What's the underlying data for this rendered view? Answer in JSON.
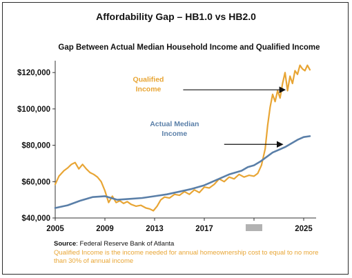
{
  "title": "Affordability Gap – HB1.0 vs HB2.0",
  "subtitle": "Gap Between Actual Median Household Income and Qualified Income",
  "source": {
    "label": "Source",
    "text": ": Federal Reserve Bank of Atlanta"
  },
  "note": "Qualified Income is the income needed for annual homeownership cost to equal to no more than 30% of annual income",
  "colors": {
    "qualified": "#e8a534",
    "actual": "#5a7fa8",
    "axis": "#333333"
  },
  "chart_data": {
    "type": "line",
    "title": "Gap Between Actual Median Household Income and Qualified Income",
    "xlabel": "",
    "ylabel": "",
    "xlim": [
      2005,
      2026
    ],
    "ylim": [
      40000,
      125000
    ],
    "x_ticks": [
      2005,
      2009,
      2013,
      2017,
      2021,
      2025
    ],
    "x_tick_labels": [
      "2005",
      "2009",
      "2013",
      "2017",
      "",
      "2025"
    ],
    "y_ticks": [
      40000,
      60000,
      80000,
      100000,
      120000
    ],
    "y_tick_labels": [
      "$40,000",
      "$60,000",
      "$80,000",
      "$100,000",
      "$120,000"
    ],
    "grid": false,
    "legend": "inline annotations",
    "series": [
      {
        "name": "Qualified Income",
        "x": [
          2005.0,
          2005.3,
          2005.7,
          2006.0,
          2006.3,
          2006.6,
          2006.9,
          2007.2,
          2007.5,
          2007.8,
          2008.1,
          2008.4,
          2008.7,
          2009.0,
          2009.3,
          2009.6,
          2009.9,
          2010.2,
          2010.5,
          2010.8,
          2011.1,
          2011.5,
          2011.9,
          2012.3,
          2012.6,
          2012.9,
          2013.2,
          2013.5,
          2013.8,
          2014.2,
          2014.6,
          2015.0,
          2015.4,
          2015.8,
          2016.2,
          2016.6,
          2017.0,
          2017.4,
          2017.8,
          2018.2,
          2018.6,
          2019.0,
          2019.4,
          2019.8,
          2020.2,
          2020.6,
          2021.0,
          2021.3,
          2021.6,
          2021.9,
          2022.1,
          2022.3,
          2022.5,
          2022.7,
          2022.9,
          2023.1,
          2023.3,
          2023.5,
          2023.7,
          2023.9,
          2024.1,
          2024.3,
          2024.5,
          2024.7,
          2024.9,
          2025.1,
          2025.3,
          2025.5
        ],
        "y": [
          58500,
          63000,
          66000,
          67500,
          69500,
          70500,
          67000,
          69500,
          67000,
          65000,
          64000,
          62500,
          60000,
          55000,
          48500,
          52000,
          48500,
          49500,
          48000,
          49000,
          47500,
          46500,
          47000,
          45500,
          45000,
          44000,
          46500,
          50000,
          51500,
          51000,
          53000,
          52500,
          54500,
          53000,
          55500,
          54000,
          57000,
          56500,
          58500,
          61500,
          60000,
          62500,
          61500,
          64000,
          62500,
          63500,
          63000,
          64500,
          69000,
          78000,
          91000,
          101000,
          108000,
          104000,
          110000,
          106000,
          114000,
          120000,
          110000,
          118000,
          114000,
          121000,
          119000,
          124000,
          122000,
          121000,
          124000,
          121500
        ]
      },
      {
        "name": "Actual Median Income",
        "x": [
          2005.0,
          2006.0,
          2007.0,
          2008.0,
          2009.0,
          2010.0,
          2011.0,
          2012.0,
          2013.0,
          2014.0,
          2015.0,
          2016.0,
          2017.0,
          2018.0,
          2019.0,
          2020.0,
          2020.5,
          2021.0,
          2021.5,
          2022.0,
          2022.5,
          2023.0,
          2023.5,
          2024.0,
          2024.5,
          2025.0,
          2025.5
        ],
        "y": [
          45500,
          47000,
          49500,
          51500,
          52000,
          50000,
          50500,
          51000,
          52000,
          53000,
          54500,
          56000,
          58000,
          61000,
          64000,
          66000,
          68000,
          69000,
          71000,
          73500,
          76000,
          77500,
          79000,
          81000,
          83000,
          84500,
          85000
        ]
      }
    ],
    "annotations": [
      {
        "text": [
          "Qualified",
          "Income"
        ],
        "series": "Qualified Income"
      },
      {
        "text": [
          "Actual Median",
          "Income"
        ],
        "series": "Actual Median Income"
      }
    ]
  }
}
